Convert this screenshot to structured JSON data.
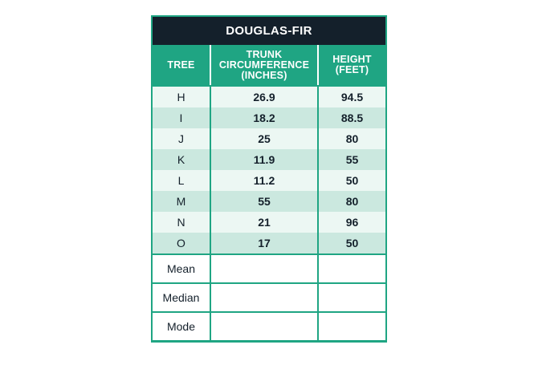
{
  "table": {
    "title": "DOUGLAS-FIR",
    "headers": {
      "tree": "TREE",
      "circumference_line1": "TRUNK",
      "circumference_line2": "CIRCUMFERENCE",
      "circumference_line3": "(INCHES)",
      "height_line1": "HEIGHT",
      "height_line2": "(FEET)"
    },
    "rows": [
      {
        "tree": "H",
        "circumference": "26.9",
        "height": "94.5"
      },
      {
        "tree": "I",
        "circumference": "18.2",
        "height": "88.5"
      },
      {
        "tree": "J",
        "circumference": "25",
        "height": "80"
      },
      {
        "tree": "K",
        "circumference": "11.9",
        "height": "55"
      },
      {
        "tree": "L",
        "circumference": "11.2",
        "height": "50"
      },
      {
        "tree": "M",
        "circumference": "55",
        "height": "80"
      },
      {
        "tree": "N",
        "circumference": "21",
        "height": "96"
      },
      {
        "tree": "O",
        "circumference": "17",
        "height": "50"
      }
    ],
    "stats": [
      {
        "label": "Mean",
        "circumference": "",
        "height": ""
      },
      {
        "label": "Median",
        "circumference": "",
        "height": ""
      },
      {
        "label": "Mode",
        "circumference": "",
        "height": ""
      }
    ]
  },
  "colors": {
    "header_green": "#1fa583",
    "title_dark": "#14202b",
    "row_light": "#ecf7f3",
    "row_dark": "#cbe8df"
  }
}
